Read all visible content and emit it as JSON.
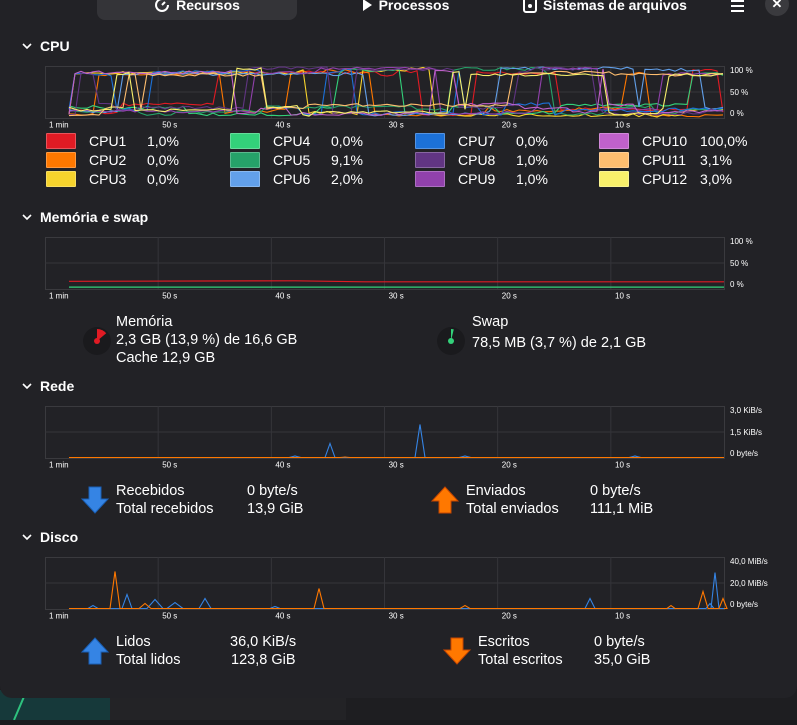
{
  "tabs": [
    {
      "label": "Recursos",
      "icon": "resources-icon",
      "active": true
    },
    {
      "label": "Processos",
      "icon": "play-icon",
      "active": false
    },
    {
      "label": "Sistemas de arquivos",
      "icon": "drive-icon",
      "active": false
    }
  ],
  "time_labels": [
    "1 min",
    "50 s",
    "40 s",
    "30 s",
    "20 s",
    "10 s"
  ],
  "cpu": {
    "title": "CPU",
    "y_labels": [
      "100 %",
      "50 %",
      "0 %"
    ],
    "cores": [
      {
        "name": "CPU1",
        "value": "1,0%",
        "color": "#e01b24"
      },
      {
        "name": "CPU2",
        "value": "0,0%",
        "color": "#ff7800"
      },
      {
        "name": "CPU3",
        "value": "0,0%",
        "color": "#f6d32d"
      },
      {
        "name": "CPU4",
        "value": "0,0%",
        "color": "#33d17a"
      },
      {
        "name": "CPU5",
        "value": "9,1%",
        "color": "#26a269"
      },
      {
        "name": "CPU6",
        "value": "2,0%",
        "color": "#62a0ea"
      },
      {
        "name": "CPU7",
        "value": "0,0%",
        "color": "#1c71d8"
      },
      {
        "name": "CPU8",
        "value": "1,0%",
        "color": "#613583"
      },
      {
        "name": "CPU9",
        "value": "1,0%",
        "color": "#9141ac"
      },
      {
        "name": "CPU10",
        "value": "100,0%",
        "color": "#c061cb"
      },
      {
        "name": "CPU11",
        "value": "3,1%",
        "color": "#ffbe6f"
      },
      {
        "name": "CPU12",
        "value": "3,0%",
        "color": "#f9f06b"
      }
    ]
  },
  "memory": {
    "title": "Memória e swap",
    "y_labels": [
      "100 %",
      "50 %",
      "0 %"
    ],
    "memory_label": "Memória",
    "memory_value": "2,3 GB (13,9 %) de 16,6 GB",
    "cache_value": "Cache 12,9 GB",
    "memory_fraction": 0.139,
    "memory_color": "#e01b24",
    "swap_label": "Swap",
    "swap_value": "78,5 MB (3,7 %) de 2,1 GB",
    "swap_fraction": 0.037,
    "swap_color": "#33d17a"
  },
  "network": {
    "title": "Rede",
    "y_labels": [
      "3,0 KiB/s",
      "1,5 KiB/s",
      "0 byte/s"
    ],
    "received_label": "Recebidos",
    "received_value": "0 byte/s",
    "total_received_label": "Total recebidos",
    "total_received_value": "13,9 GiB",
    "sent_label": "Enviados",
    "sent_value": "0 byte/s",
    "total_sent_label": "Total enviados",
    "total_sent_value": "111,1 MiB",
    "received_color": "#3584e4",
    "sent_color": "#ff7800"
  },
  "disk": {
    "title": "Disco",
    "y_labels": [
      "40,0 MiB/s",
      "20,0 MiB/s",
      "0 byte/s"
    ],
    "read_label": "Lidos",
    "read_value": "36,0 KiB/s",
    "total_read_label": "Total lidos",
    "total_read_value": "123,8 GiB",
    "write_label": "Escritos",
    "write_value": "0 byte/s",
    "total_write_label": "Total escritos",
    "total_write_value": "35,0 GiB",
    "read_color": "#3584e4",
    "write_color": "#ff7800"
  }
}
